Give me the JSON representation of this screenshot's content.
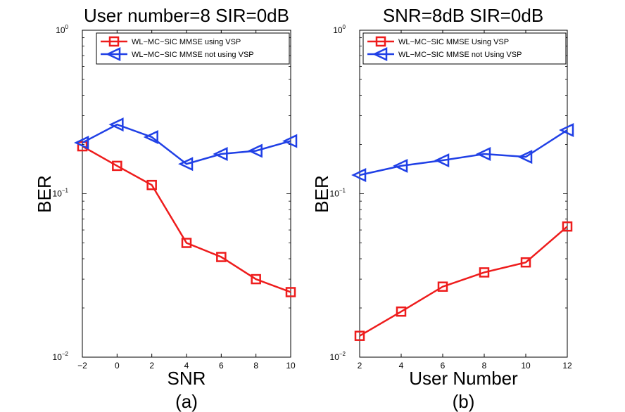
{
  "colors": {
    "series_a": "#ee1c1c",
    "series_b": "#2040e6",
    "axis": "#000000"
  },
  "chart_data": [
    {
      "type": "line",
      "title": "User number=8 SIR=0dB",
      "xlabel": "SNR",
      "ylabel": "BER",
      "caption": "(a)",
      "xscale": "linear",
      "yscale": "log",
      "xlim": [
        -2,
        10
      ],
      "ylim": [
        0.01,
        1
      ],
      "xticks": [
        -2,
        0,
        2,
        4,
        6,
        8,
        10
      ],
      "x": [
        -2,
        0,
        2,
        4,
        6,
        8,
        10
      ],
      "legend_position": "top-right",
      "series": [
        {
          "name": "WL−MC−SIC MMSE using VSP",
          "marker": "square",
          "color": "#ee1c1c",
          "values": [
            0.195,
            0.148,
            0.113,
            0.05,
            0.041,
            0.03,
            0.025
          ]
        },
        {
          "name": "WL−MC−SIC MMSE not using VSP",
          "marker": "triangle-left",
          "color": "#2040e6",
          "values": [
            0.205,
            0.265,
            0.222,
            0.152,
            0.175,
            0.183,
            0.21
          ]
        }
      ]
    },
    {
      "type": "line",
      "title": "SNR=8dB SIR=0dB",
      "xlabel": "User Number",
      "ylabel": "BER",
      "caption": "(b)",
      "xscale": "linear",
      "yscale": "log",
      "xlim": [
        2,
        12
      ],
      "ylim": [
        0.01,
        1
      ],
      "xticks": [
        2,
        4,
        6,
        8,
        10,
        12
      ],
      "x": [
        2,
        4,
        6,
        8,
        10,
        12
      ],
      "legend_position": "top-right",
      "series": [
        {
          "name": "WL−MC−SIC MMSE Using VSP",
          "marker": "square",
          "color": "#ee1c1c",
          "values": [
            0.0135,
            0.019,
            0.027,
            0.033,
            0.038,
            0.063
          ]
        },
        {
          "name": "WL−MC−SIC MMSE not Using VSP",
          "marker": "triangle-left",
          "color": "#2040e6",
          "values": [
            0.13,
            0.148,
            0.16,
            0.175,
            0.168,
            0.245
          ]
        }
      ]
    }
  ]
}
